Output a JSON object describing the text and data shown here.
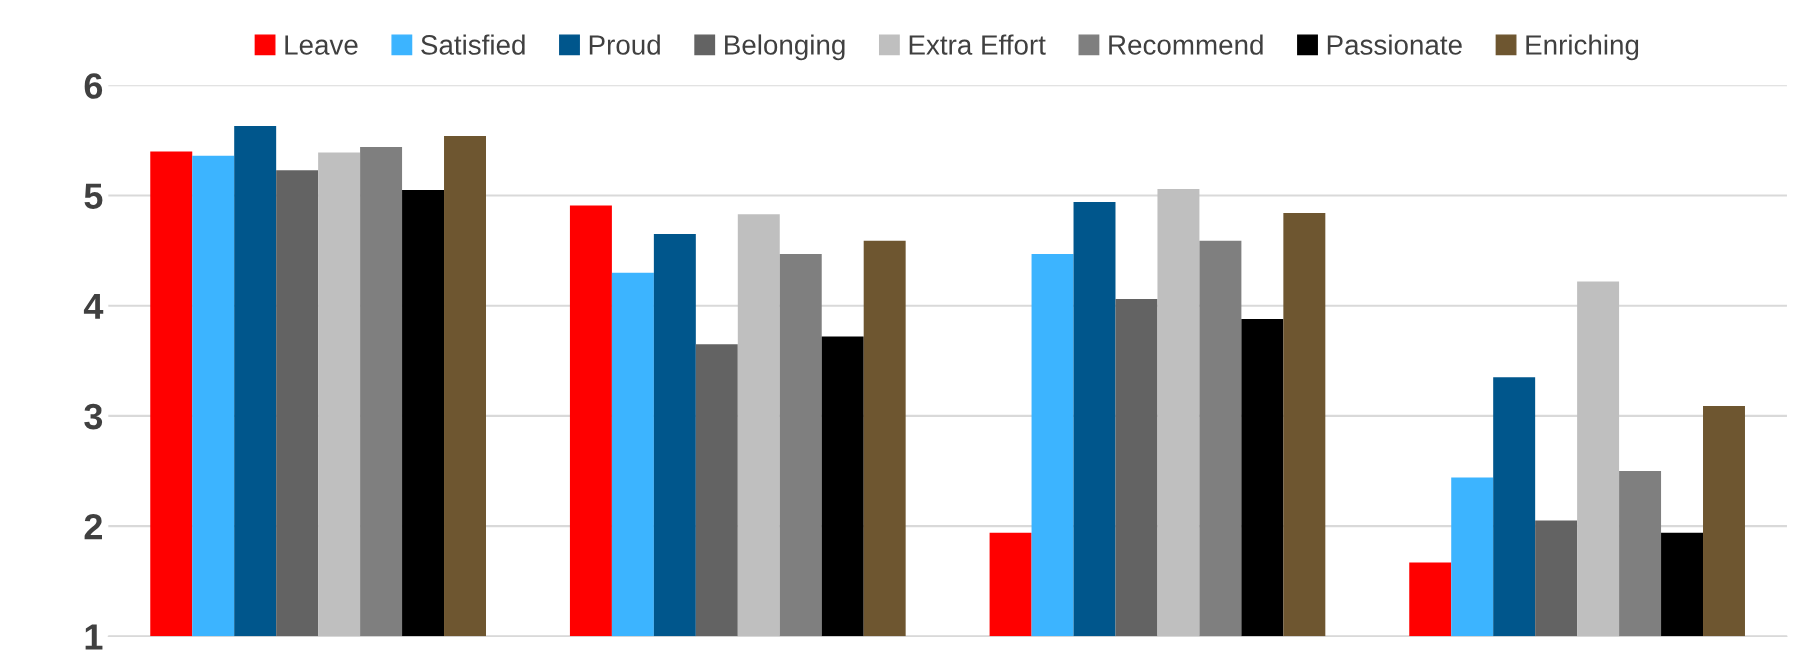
{
  "chart_data": {
    "type": "bar",
    "categories": [
      null,
      null,
      null,
      null
    ],
    "series": [
      {
        "name": "Leave",
        "color": "#ff0000",
        "values": [
          5.4,
          4.91,
          1.94,
          1.67
        ]
      },
      {
        "name": "Satisfied",
        "color": "#3cb4ff",
        "values": [
          5.36,
          4.3,
          4.47,
          2.44
        ]
      },
      {
        "name": "Proud",
        "color": "#00568c",
        "values": [
          5.63,
          4.65,
          4.94,
          3.35
        ]
      },
      {
        "name": "Belonging",
        "color": "#636363",
        "values": [
          5.23,
          3.65,
          4.06,
          2.05
        ]
      },
      {
        "name": "Extra Effort",
        "color": "#bfbfbf",
        "values": [
          5.39,
          4.83,
          5.06,
          4.22
        ]
      },
      {
        "name": "Recommend",
        "color": "#7f7f7f",
        "values": [
          5.44,
          4.47,
          4.59,
          2.5
        ]
      },
      {
        "name": "Passionate",
        "color": "#000000",
        "values": [
          5.05,
          3.72,
          3.88,
          1.94
        ]
      },
      {
        "name": "Enriching",
        "color": "#6e5630",
        "values": [
          5.54,
          4.59,
          4.84,
          3.09
        ]
      }
    ],
    "ylim": [
      1,
      6
    ],
    "yticks": [
      1,
      2,
      3,
      4,
      5,
      6
    ],
    "grid": "y",
    "legend": "top"
  }
}
